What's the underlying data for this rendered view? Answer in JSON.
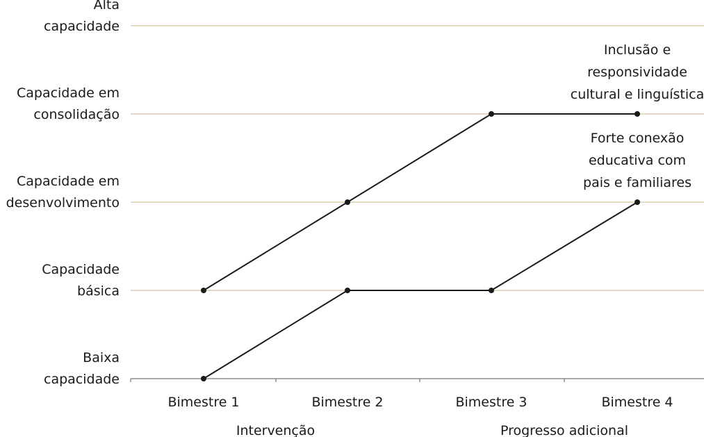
{
  "chart_data": {
    "type": "line",
    "title": "",
    "categories": [
      "Bimestre 1",
      "Bimestre 2",
      "Bimestre 3",
      "Bimestre 4"
    ],
    "y_levels": [
      [
        "Baixa",
        "capacidade"
      ],
      [
        "Capacidade",
        "básica"
      ],
      [
        "Capacidade em",
        "desenvolvimento"
      ],
      [
        "Capacidade em",
        "consolidação"
      ],
      [
        "Alta",
        "capacidade"
      ]
    ],
    "ylim": [
      0,
      4
    ],
    "series": [
      {
        "values": [
          1,
          2,
          3,
          3
        ]
      },
      {
        "values": [
          0,
          1,
          1,
          2
        ]
      }
    ],
    "annotations": [
      {
        "lines": [
          "Inclusão e",
          "responsividade",
          "cultural e linguística"
        ],
        "series_index": 0
      },
      {
        "lines": [
          "Forte conexão",
          "educativa com",
          "pais e familiares"
        ],
        "series_index": 1
      }
    ],
    "groups": [
      {
        "label": "Intervenção",
        "span": [
          0,
          1
        ]
      },
      {
        "label": "Progresso adicional",
        "span": [
          2,
          3
        ]
      }
    ],
    "grid": true,
    "colors": {
      "grid": "#c9b48a",
      "line": "#1a1a1a",
      "axis": "#555555"
    }
  }
}
